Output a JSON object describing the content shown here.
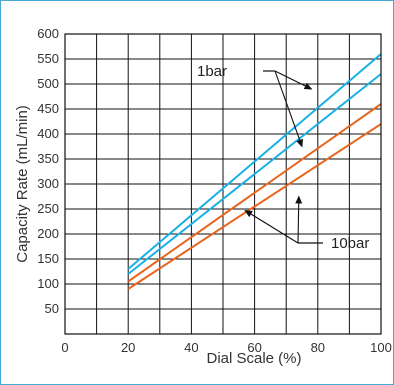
{
  "chart_data": {
    "type": "line",
    "title": "",
    "xlabel": "Dial Scale (%)",
    "ylabel": "Capacity Rate (mL/min)",
    "xlim": [
      0,
      100
    ],
    "ylim": [
      0,
      600
    ],
    "x_ticks": [
      "0",
      "20",
      "40",
      "60",
      "80",
      "100"
    ],
    "y_ticks": [
      "50",
      "100",
      "150",
      "200",
      "250",
      "300",
      "350",
      "400",
      "450",
      "500",
      "550",
      "600"
    ],
    "grid": true,
    "series": [
      {
        "color": "#1ab0e6",
        "x": [
          20,
          100
        ],
        "y": [
          130,
          560
        ]
      },
      {
        "color": "#1ab0e6",
        "x": [
          20,
          100
        ],
        "y": [
          120,
          520
        ]
      },
      {
        "color": "#e8651e",
        "x": [
          20,
          100
        ],
        "y": [
          105,
          460
        ]
      },
      {
        "color": "#e8651e",
        "x": [
          20,
          100
        ],
        "y": [
          90,
          420
        ]
      }
    ],
    "annotations": [
      {
        "text": "1bar",
        "points_to": [
          [
            78,
            490
          ],
          [
            75,
            375
          ]
        ]
      },
      {
        "text": "10bar",
        "points_to": [
          [
            57,
            247
          ],
          [
            74,
            275
          ]
        ]
      }
    ]
  }
}
